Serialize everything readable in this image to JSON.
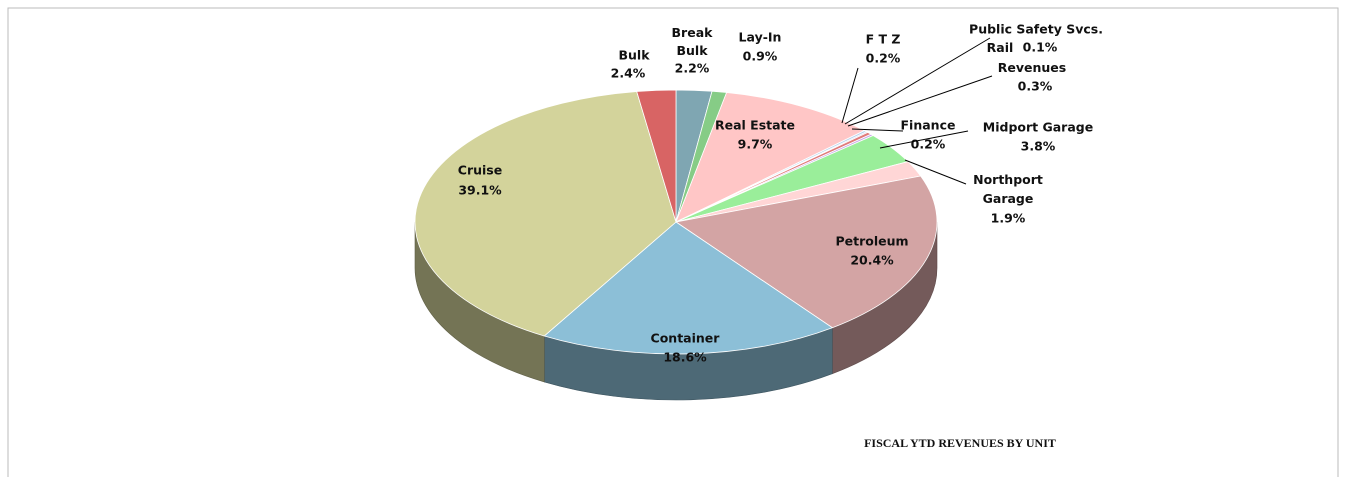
{
  "chart_data": {
    "type": "pie3d",
    "title": "FISCAL YTD REVENUES BY UNIT",
    "categories": [
      "Break Bulk",
      "Lay-In",
      "Real Estate",
      "F T Z",
      "Public Safety Svcs.",
      "Rail Revenues",
      "Finance",
      "Midport Garage",
      "Northport Garage",
      "Petroleum",
      "Container",
      "Cruise",
      "Bulk"
    ],
    "values": [
      2.2,
      0.9,
      9.7,
      0.2,
      0.1,
      0.3,
      0.2,
      3.8,
      1.9,
      20.4,
      18.6,
      39.1,
      2.4
    ],
    "value_labels": [
      "2.2%",
      "0.9%",
      "9.7%",
      "0.2%",
      "0.1%",
      "0.3%",
      "0.2%",
      "3.8%",
      "1.9%",
      "20.4%",
      "18.6%",
      "39.1%",
      "2.4%"
    ],
    "colors": [
      "#7fa6b2",
      "#86cc86",
      "#ffc6c6",
      "#b9d3ee",
      "#9b9bc8",
      "#e07a7a",
      "#c9a8e8",
      "#9aee9a",
      "#ffd6d6",
      "#d3a4a4",
      "#8cbfd7",
      "#d3d39b",
      "#d86464"
    ]
  }
}
